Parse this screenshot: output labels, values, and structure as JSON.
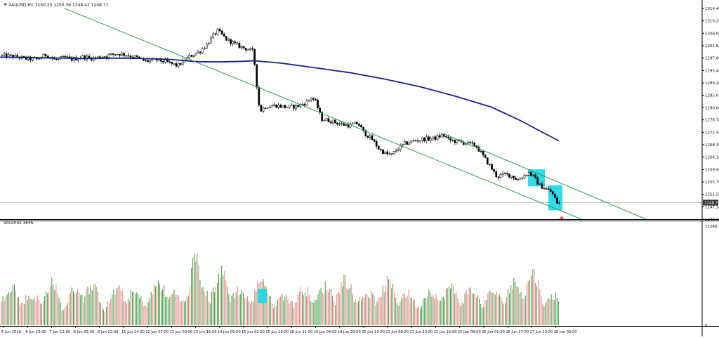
{
  "header": {
    "symbol_info": "XAUUSD,H1  1250.25 1250.36 1248.42 1248.71",
    "volume_label": "Volumes 1646"
  },
  "colors": {
    "bull": "#3c9a3c",
    "bear": "#e87b7b",
    "candle": "#000000",
    "ma": "#1f1f8c",
    "channel": "#2e9a55",
    "highlight": "#18d8e8",
    "price_line": "#b0b0b0",
    "arrow": "#e0201c"
  },
  "chart_data": [
    {
      "type": "candlestick",
      "symbol": "XAUUSD",
      "timeframe": "H1",
      "y_ticks": [
        "1314.40",
        "1310.20",
        "1306.00",
        "1301.80",
        "1297.60",
        "1293.40",
        "1289.20",
        "1285.00",
        "1280.80",
        "1276.70",
        "1272.50",
        "1268.30",
        "1264.10",
        "1259.90",
        "1255.70",
        "1251.50",
        "1247.30",
        "1243.10"
      ],
      "ylim": [
        1243.1,
        1314.4
      ],
      "current_price": "1248.71",
      "x_ticks": [
        "6 Jun 2018",
        "6 Jun 19:00",
        "7 Jun 12:00",
        "8 Jun 05:00",
        "8 Jun 22:00",
        "11 Jun 14:00",
        "12 Jun 07:00",
        "13 Jun 00:00",
        "13 Jun 16:00",
        "14 Jun 09:00",
        "15 Jun 02:00",
        "15 Jun 18:00",
        "18 Jun 11:00",
        "19 Jun 04:00",
        "19 Jun 20:00",
        "20 Jun 13:00",
        "21 Jun 06:00",
        "21 Jun 23:00",
        "22 Jun 15:00",
        "25 Jun 08:00",
        "26 Jun 01:00",
        "26 Jun 17:00",
        "27 Jun 10:00",
        "28 Jun 03:00"
      ],
      "price_path": [
        [
          0,
          1298.5
        ],
        [
          20,
          1298.2
        ],
        [
          40,
          1297.4
        ],
        [
          55,
          1297.2
        ],
        [
          68,
          1298.8
        ],
        [
          80,
          1297.0
        ],
        [
          95,
          1297.8
        ],
        [
          105,
          1297.2
        ],
        [
          120,
          1298.0
        ],
        [
          135,
          1297.5
        ],
        [
          150,
          1298.2
        ],
        [
          168,
          1299.1
        ],
        [
          180,
          1298.8
        ],
        [
          195,
          1297.9
        ],
        [
          210,
          1296.5
        ],
        [
          225,
          1297.0
        ],
        [
          240,
          1296.2
        ],
        [
          255,
          1295.0
        ],
        [
          265,
          1296.8
        ],
        [
          272,
          1298.2
        ],
        [
          285,
          1299.6
        ],
        [
          296,
          1302.0
        ],
        [
          305,
          1305.0
        ],
        [
          312,
          1306.8
        ],
        [
          318,
          1305.5
        ],
        [
          325,
          1303.8
        ],
        [
          333,
          1302.8
        ],
        [
          345,
          1301.4
        ],
        [
          355,
          1300.6
        ],
        [
          363,
          1299.8
        ],
        [
          367,
          1290.0
        ],
        [
          372,
          1279.5
        ],
        [
          380,
          1281.2
        ],
        [
          395,
          1281.6
        ],
        [
          410,
          1281.0
        ],
        [
          425,
          1281.3
        ],
        [
          438,
          1282.5
        ],
        [
          446,
          1284.4
        ],
        [
          452,
          1282.6
        ],
        [
          460,
          1277.0
        ],
        [
          472,
          1276.4
        ],
        [
          488,
          1275.2
        ],
        [
          500,
          1274.8
        ],
        [
          512,
          1275.6
        ],
        [
          520,
          1272.5
        ],
        [
          532,
          1270.1
        ],
        [
          542,
          1266.8
        ],
        [
          552,
          1265.2
        ],
        [
          560,
          1264.9
        ],
        [
          568,
          1266.8
        ],
        [
          578,
          1268.6
        ],
        [
          592,
          1269.6
        ],
        [
          605,
          1270.2
        ],
        [
          620,
          1270.4
        ],
        [
          633,
          1271.6
        ],
        [
          642,
          1269.8
        ],
        [
          655,
          1269.3
        ],
        [
          668,
          1268.7
        ],
        [
          680,
          1268.0
        ],
        [
          692,
          1263.8
        ],
        [
          702,
          1260.3
        ],
        [
          710,
          1257.4
        ],
        [
          722,
          1258.4
        ],
        [
          732,
          1257.6
        ],
        [
          740,
          1256.3
        ],
        [
          748,
          1257.8
        ],
        [
          755,
          1258.9
        ],
        [
          762,
          1257.5
        ],
        [
          770,
          1254.6
        ],
        [
          780,
          1253.3
        ],
        [
          788,
          1252.2
        ],
        [
          795,
          1248.7
        ]
      ],
      "moving_average": [
        [
          0,
          1297.9
        ],
        [
          60,
          1297.7
        ],
        [
          120,
          1297.5
        ],
        [
          180,
          1297.6
        ],
        [
          240,
          1297.2
        ],
        [
          280,
          1296.4
        ],
        [
          310,
          1296.3
        ],
        [
          345,
          1296.5
        ],
        [
          362,
          1296.7
        ],
        [
          400,
          1295.9
        ],
        [
          450,
          1294.3
        ],
        [
          500,
          1292.6
        ],
        [
          550,
          1290.4
        ],
        [
          600,
          1287.8
        ],
        [
          650,
          1284.6
        ],
        [
          700,
          1281.0
        ],
        [
          740,
          1276.6
        ],
        [
          770,
          1272.8
        ],
        [
          796,
          1269.6
        ]
      ],
      "trend_lines": [
        {
          "from": [
            92,
            1314.4
          ],
          "to": [
            828,
            1243.1
          ]
        },
        {
          "from": [
            633,
            1271.9
          ],
          "to": [
            920,
            1243.1
          ]
        }
      ],
      "highlight_boxes": [
        {
          "x": [
            752,
            776
          ],
          "y": [
            1260.0,
            1254.2
          ]
        },
        {
          "x": [
            781,
            801
          ],
          "y": [
            1254.6,
            1246.1
          ]
        }
      ],
      "arrow_marker": {
        "x": 800,
        "y": 1243.2,
        "direction": "up"
      }
    },
    {
      "type": "bar",
      "name": "Volumes",
      "y_ticks": [
        "11246",
        "0"
      ],
      "ylim": [
        0,
        11246
      ],
      "volume_envelope": [
        [
          0,
          4200
        ],
        [
          20,
          5200
        ],
        [
          45,
          3400
        ],
        [
          75,
          5600
        ],
        [
          90,
          3100
        ],
        [
          120,
          5900
        ],
        [
          150,
          3200
        ],
        [
          175,
          5200
        ],
        [
          200,
          3600
        ],
        [
          235,
          5800
        ],
        [
          262,
          3000
        ],
        [
          277,
          11246
        ],
        [
          285,
          5000
        ],
        [
          305,
          5700
        ],
        [
          320,
          7000
        ],
        [
          335,
          4800
        ],
        [
          350,
          3900
        ],
        [
          372,
          6200
        ],
        [
          395,
          3400
        ],
        [
          425,
          4500
        ],
        [
          460,
          4700
        ],
        [
          490,
          5900
        ],
        [
          520,
          3900
        ],
        [
          555,
          5500
        ],
        [
          590,
          3500
        ],
        [
          625,
          4800
        ],
        [
          660,
          4600
        ],
        [
          695,
          4000
        ],
        [
          730,
          5100
        ],
        [
          757,
          7000
        ],
        [
          775,
          4300
        ],
        [
          797,
          3500
        ]
      ],
      "highlight_box": {
        "x": [
          367,
          380
        ],
        "y": [
          4100,
          2500
        ]
      }
    }
  ]
}
